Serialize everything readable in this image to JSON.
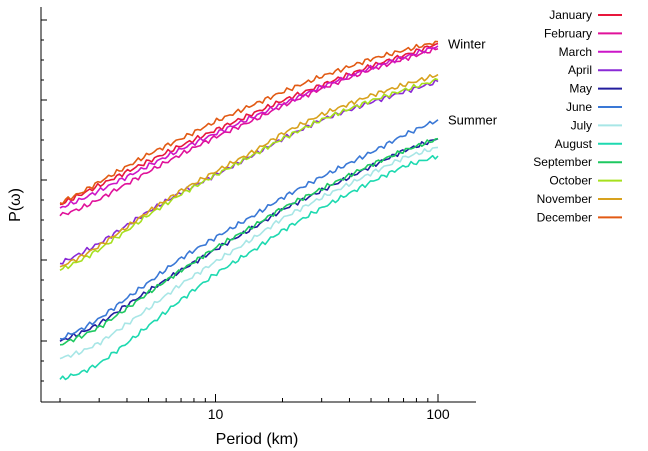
{
  "chart_data": {
    "type": "line",
    "xlabel": "Period (km)",
    "ylabel": "P(ω)",
    "x_scale": "log",
    "xlim": [
      1.6,
      150
    ],
    "xticks": [
      {
        "value": 10,
        "label": "10"
      },
      {
        "value": 100,
        "label": "100"
      }
    ],
    "y_scale": "log",
    "y_tick_labels_shown": false,
    "grid": false,
    "legend_position": "right",
    "annotations": [
      {
        "text": "Winter",
        "near_series": "January",
        "at_x": 100
      },
      {
        "text": "Summer",
        "near_series": "June",
        "at_x": 100
      }
    ],
    "x": [
      2,
      2.5,
      3,
      4,
      5,
      7,
      10,
      15,
      20,
      30,
      50,
      70,
      100
    ],
    "series": [
      {
        "name": "January",
        "color": "#e8173c",
        "y": [
          0.9,
          1.02,
          1.12,
          1.28,
          1.4,
          1.58,
          1.76,
          1.96,
          2.1,
          2.28,
          2.5,
          2.62,
          2.76
        ]
      },
      {
        "name": "February",
        "color": "#e0129a",
        "y": [
          0.77,
          0.86,
          0.96,
          1.14,
          1.28,
          1.48,
          1.68,
          1.88,
          2.04,
          2.24,
          2.46,
          2.58,
          2.7
        ]
      },
      {
        "name": "March",
        "color": "#cc16c8",
        "y": [
          0.86,
          0.96,
          1.06,
          1.22,
          1.35,
          1.54,
          1.72,
          1.92,
          2.06,
          2.26,
          2.48,
          2.6,
          2.73
        ]
      },
      {
        "name": "April",
        "color": "#8a2ad6",
        "y": [
          0.22,
          0.34,
          0.45,
          0.66,
          0.82,
          1.04,
          1.24,
          1.48,
          1.66,
          1.88,
          2.08,
          2.2,
          2.32
        ]
      },
      {
        "name": "May",
        "color": "#231d9e",
        "y": [
          -0.68,
          -0.58,
          -0.48,
          -0.26,
          -0.1,
          0.14,
          0.38,
          0.64,
          0.84,
          1.06,
          1.34,
          1.52,
          1.66
        ]
      },
      {
        "name": "June",
        "color": "#3a78d6",
        "y": [
          -0.65,
          -0.54,
          -0.42,
          -0.18,
          0.0,
          0.28,
          0.52,
          0.78,
          0.98,
          1.22,
          1.5,
          1.7,
          1.88
        ]
      },
      {
        "name": "July",
        "color": "#a8e6e6",
        "y": [
          -0.88,
          -0.8,
          -0.7,
          -0.48,
          -0.3,
          -0.02,
          0.24,
          0.52,
          0.74,
          0.98,
          1.26,
          1.44,
          1.56
        ]
      },
      {
        "name": "August",
        "color": "#1ed9b0",
        "y": [
          -1.12,
          -1.04,
          -0.94,
          -0.7,
          -0.5,
          -0.2,
          0.1,
          0.38,
          0.6,
          0.86,
          1.16,
          1.34,
          1.46
        ]
      },
      {
        "name": "September",
        "color": "#1ec860",
        "y": [
          -0.72,
          -0.62,
          -0.52,
          -0.3,
          -0.12,
          0.14,
          0.4,
          0.66,
          0.86,
          1.08,
          1.36,
          1.52,
          1.66
        ]
      },
      {
        "name": "October",
        "color": "#a6e01e",
        "y": [
          0.14,
          0.26,
          0.38,
          0.6,
          0.78,
          1.02,
          1.24,
          1.48,
          1.66,
          1.88,
          2.1,
          2.22,
          2.34
        ]
      },
      {
        "name": "November",
        "color": "#d8a21e",
        "y": [
          0.18,
          0.3,
          0.42,
          0.64,
          0.82,
          1.06,
          1.28,
          1.52,
          1.72,
          1.94,
          2.16,
          2.28,
          2.4
        ]
      },
      {
        "name": "December",
        "color": "#e25a14",
        "y": [
          0.92,
          1.04,
          1.16,
          1.34,
          1.48,
          1.66,
          1.86,
          2.06,
          2.2,
          2.38,
          2.58,
          2.68,
          2.78
        ]
      }
    ]
  }
}
